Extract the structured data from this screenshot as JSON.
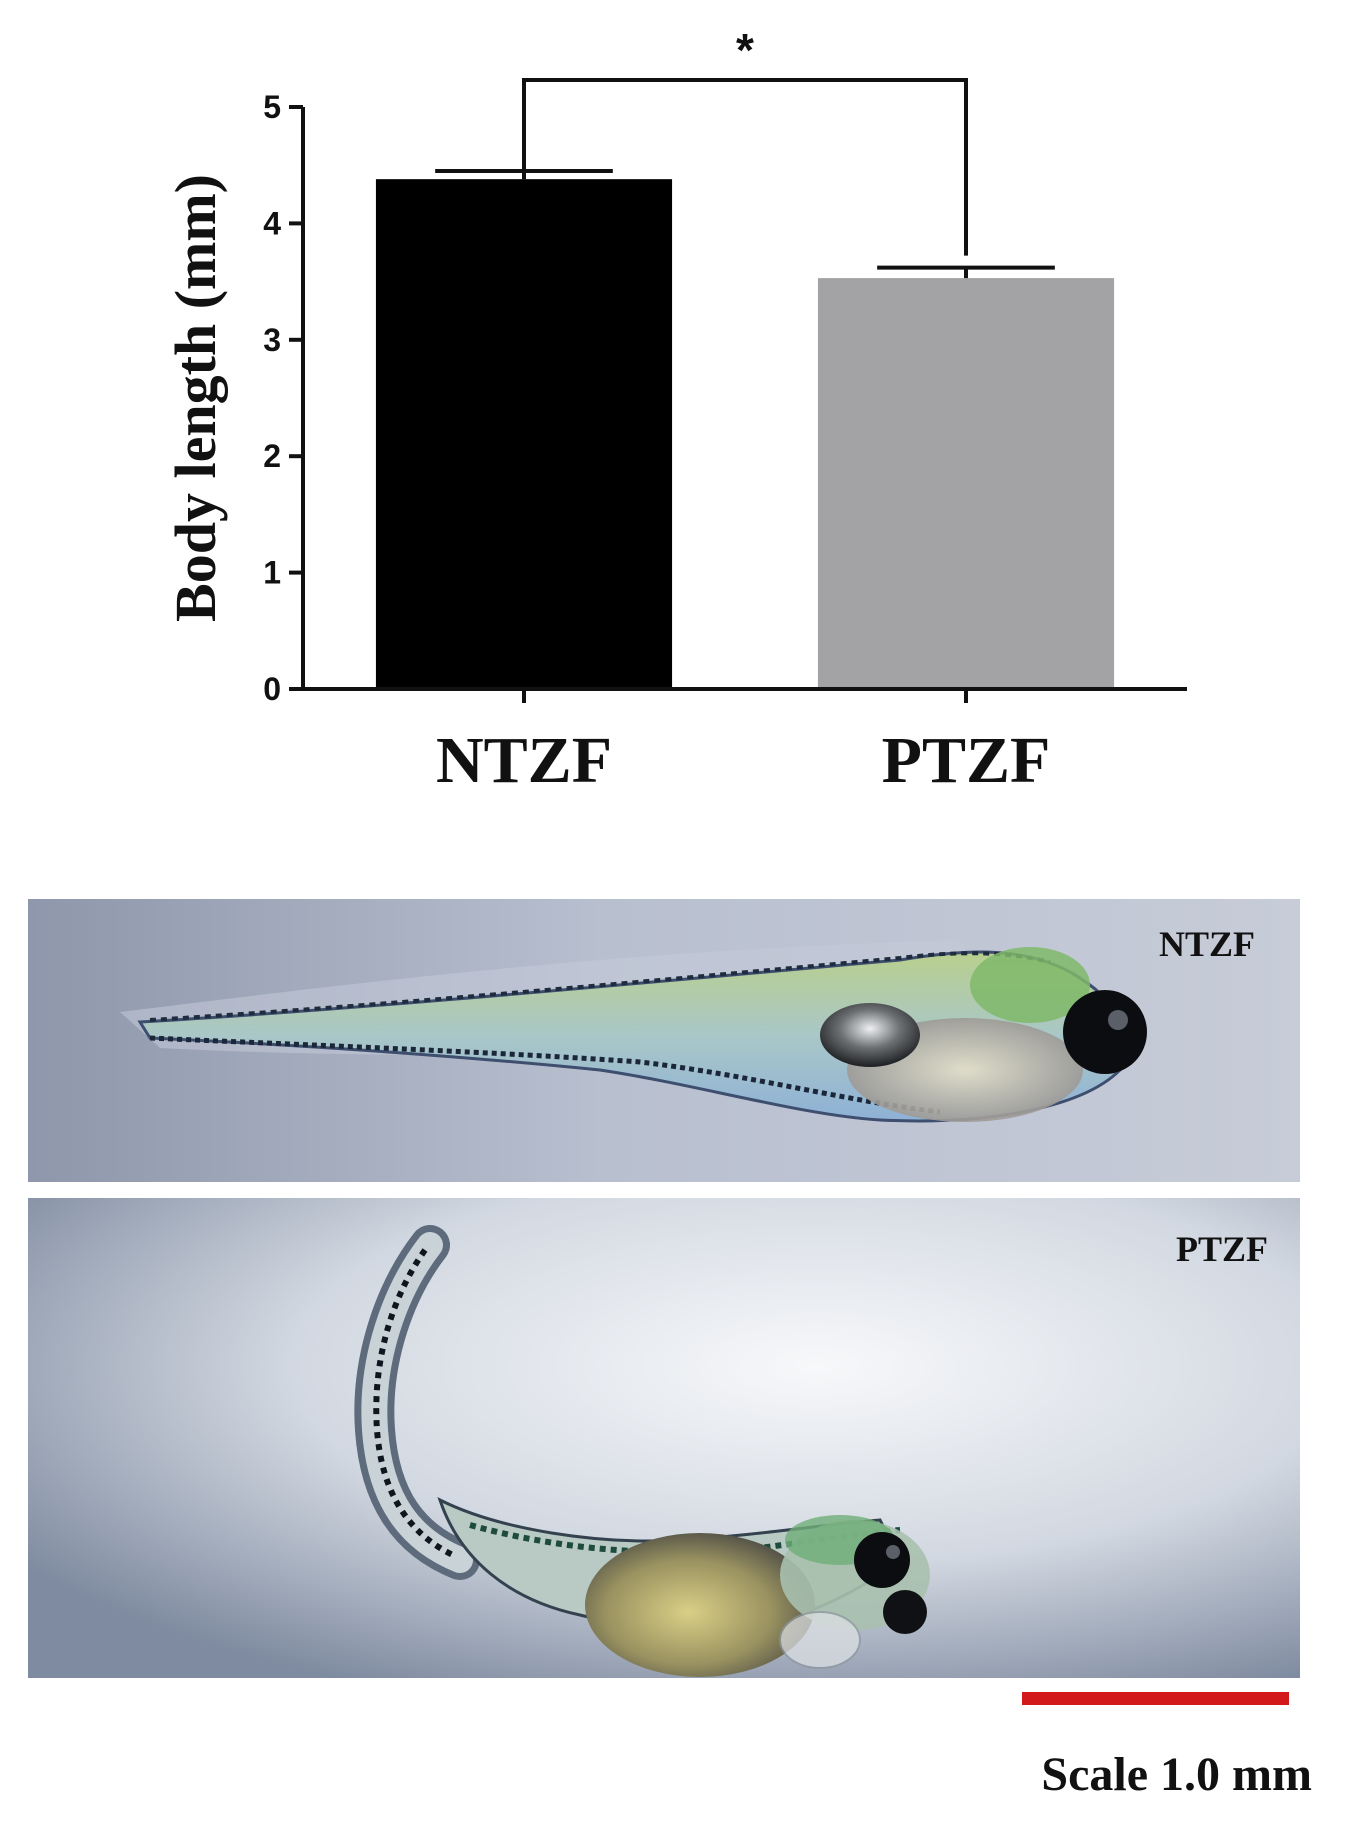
{
  "chart_data": {
    "type": "bar",
    "categories": [
      "NTZF",
      "PTZF"
    ],
    "values": [
      4.38,
      3.53
    ],
    "errors": [
      0.07,
      0.09
    ],
    "colors": [
      "#000000",
      "#a3a3a5"
    ],
    "ylabel": "Body length (mm)",
    "xlabel": "",
    "ylim": [
      0,
      5
    ],
    "yticks": [
      "0",
      "1",
      "2",
      "3",
      "4",
      "5"
    ],
    "significance": {
      "pair": [
        "NTZF",
        "PTZF"
      ],
      "label": "*"
    },
    "grid": false
  },
  "photos": {
    "top_label": "NTZF",
    "bottom_label": "PTZF"
  },
  "scale_bar": {
    "label": "Scale 1.0 mm",
    "color": "#d21a1a"
  }
}
